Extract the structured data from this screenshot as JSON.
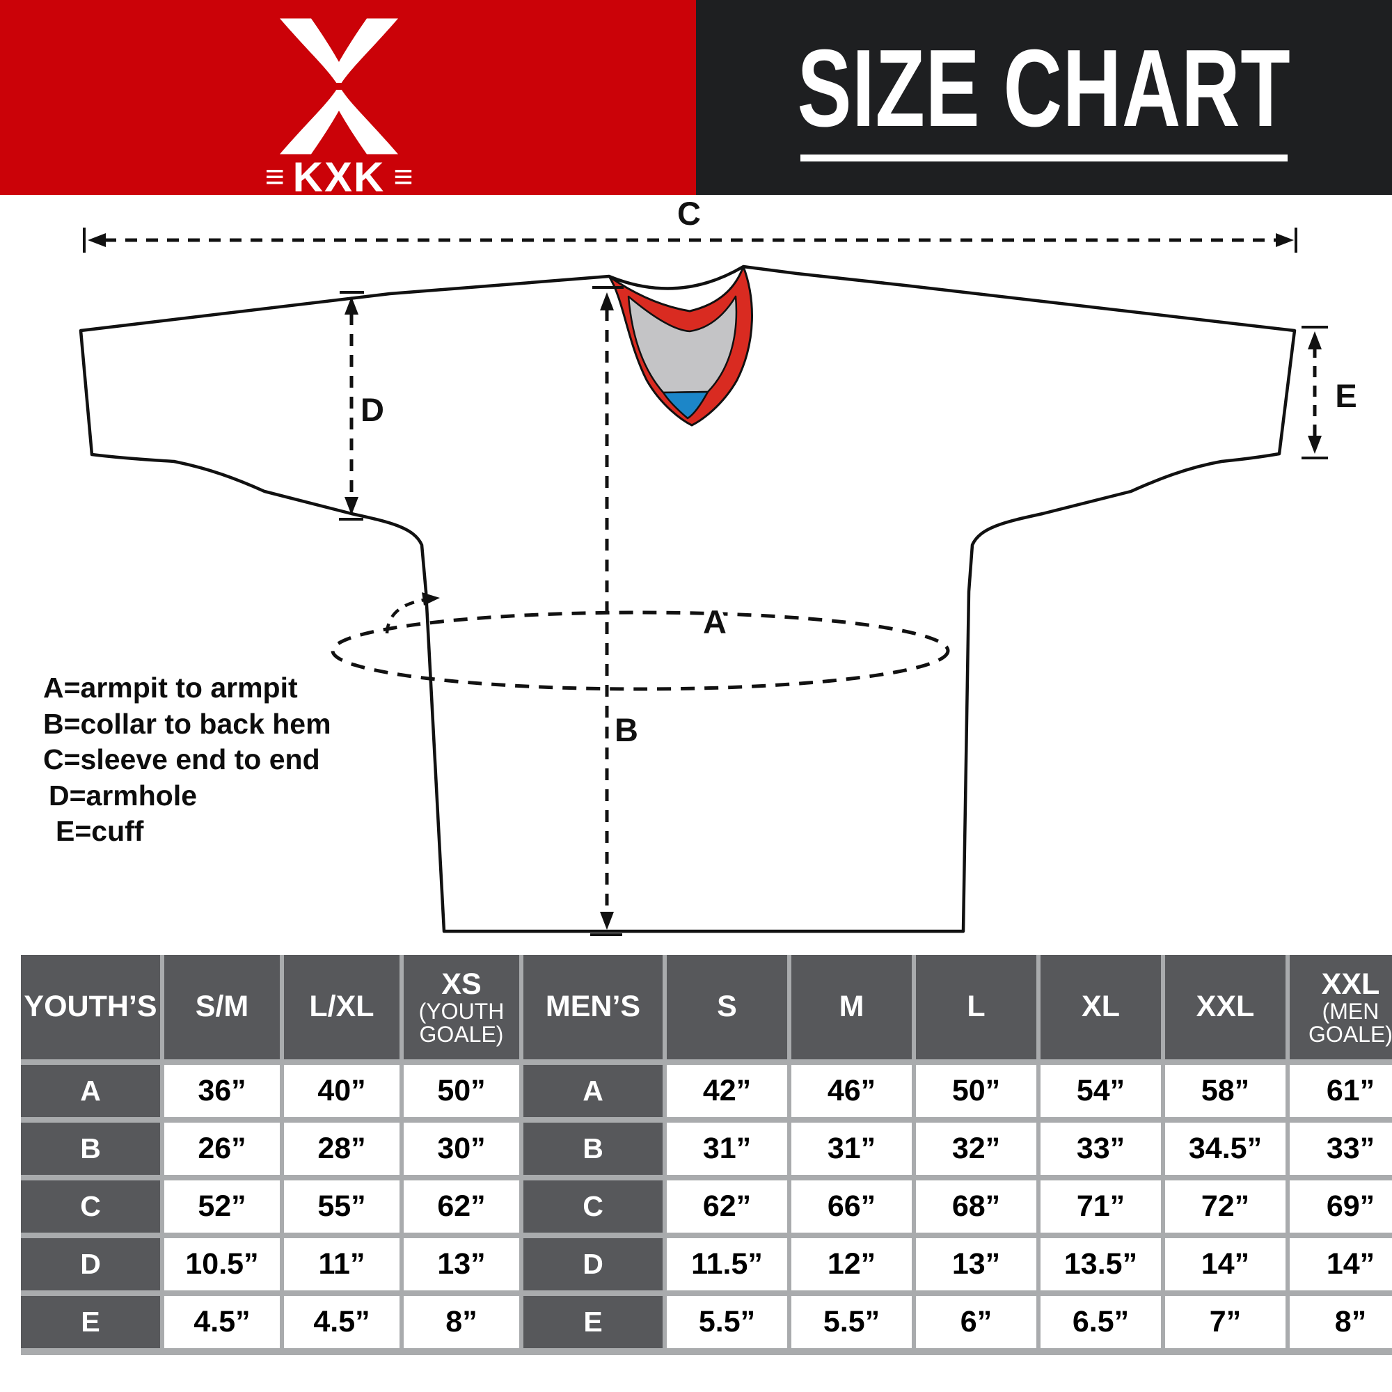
{
  "header": {
    "logo": {
      "brand": "KXK",
      "mark": "≡"
    },
    "title": "SIZE CHART",
    "colors": {
      "banner_red": "#cb0208",
      "banner_black": "#1e1f21"
    }
  },
  "legend": {
    "lines": [
      "A=armpit to armpit",
      "B=collar to back hem",
      "C=sleeve end to end",
      "D=armhole",
      "E=cuff"
    ]
  },
  "diagram": {
    "labels": {
      "A": "A",
      "B": "B",
      "C": "C",
      "D": "D",
      "E": "E"
    },
    "colors": {
      "outline": "#111111",
      "collar_red": "#d92b21",
      "collar_gray": "#c4c4c6",
      "collar_blue": "#1c86c8"
    }
  },
  "size_table": {
    "colors": {
      "label_cell": "#57585b",
      "value_cell": "#ffffff",
      "grid_gap": "#a9abad"
    },
    "columns": [
      {
        "label": "YOUTH’S",
        "sub": ""
      },
      {
        "label": "S/M",
        "sub": ""
      },
      {
        "label": "L/XL",
        "sub": ""
      },
      {
        "label": "XS",
        "sub": "(YOUTH GOALE)"
      },
      {
        "label": "MEN’S",
        "sub": ""
      },
      {
        "label": "S",
        "sub": ""
      },
      {
        "label": "M",
        "sub": ""
      },
      {
        "label": "L",
        "sub": ""
      },
      {
        "label": "XL",
        "sub": ""
      },
      {
        "label": "XXL",
        "sub": ""
      },
      {
        "label": "XXL",
        "sub": "(MEN GOALE)"
      }
    ],
    "rows": [
      {
        "label": "A",
        "youth_values": [
          "36”",
          "40”",
          "50”"
        ],
        "men_label": "A",
        "men_values": [
          "42”",
          "46”",
          "50”",
          "54”",
          "58”",
          "61”"
        ]
      },
      {
        "label": "B",
        "youth_values": [
          "26”",
          "28”",
          "30”"
        ],
        "men_label": "B",
        "men_values": [
          "31”",
          "31”",
          "32”",
          "33”",
          "34.5”",
          "33”"
        ]
      },
      {
        "label": "C",
        "youth_values": [
          "52”",
          "55”",
          "62”"
        ],
        "men_label": "C",
        "men_values": [
          "62”",
          "66”",
          "68”",
          "71”",
          "72”",
          "69”"
        ]
      },
      {
        "label": "D",
        "youth_values": [
          "10.5”",
          "11”",
          "13”"
        ],
        "men_label": "D",
        "men_values": [
          "11.5”",
          "12”",
          "13”",
          "13.5”",
          "14”",
          "14”"
        ]
      },
      {
        "label": "E",
        "youth_values": [
          "4.5”",
          "4.5”",
          "8”"
        ],
        "men_label": "E",
        "men_values": [
          "5.5”",
          "5.5”",
          "6”",
          "6.5”",
          "7”",
          "8”"
        ]
      }
    ]
  },
  "chart_data": {
    "type": "table",
    "title": "SIZE CHART",
    "brand": "KXK",
    "measure_definitions": {
      "A": "armpit to armpit",
      "B": "collar to back hem",
      "C": "sleeve end to end",
      "D": "armhole",
      "E": "cuff"
    },
    "youth": {
      "columns": [
        "S/M",
        "L/XL",
        "XS (YOUTH GOALE)"
      ],
      "rows": {
        "A": [
          "36”",
          "40”",
          "50”"
        ],
        "B": [
          "26”",
          "28”",
          "30”"
        ],
        "C": [
          "52”",
          "55”",
          "62”"
        ],
        "D": [
          "10.5”",
          "11”",
          "13”"
        ],
        "E": [
          "4.5”",
          "4.5”",
          "8”"
        ]
      }
    },
    "men": {
      "columns": [
        "S",
        "M",
        "L",
        "XL",
        "XXL",
        "XXL (MEN GOALE)"
      ],
      "rows": {
        "A": [
          "42”",
          "46”",
          "50”",
          "54”",
          "58”",
          "61”"
        ],
        "B": [
          "31”",
          "31”",
          "32”",
          "33”",
          "34.5”",
          "33”"
        ],
        "C": [
          "62”",
          "66”",
          "68”",
          "71”",
          "72”",
          "69”"
        ],
        "D": [
          "11.5”",
          "12”",
          "13”",
          "13.5”",
          "14”",
          "14”"
        ],
        "E": [
          "5.5”",
          "5.5”",
          "6”",
          "6.5”",
          "7”",
          "8”"
        ]
      }
    }
  }
}
